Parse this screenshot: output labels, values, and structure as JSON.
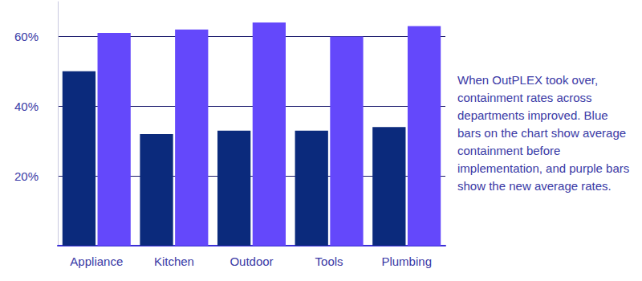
{
  "chart_data": {
    "type": "bar",
    "categories": [
      "Appliance",
      "Kitchen",
      "Outdoor",
      "Tools",
      "Plumbing"
    ],
    "series": [
      {
        "color": "#0b2a7c",
        "values": [
          50,
          32,
          33,
          33,
          34
        ]
      },
      {
        "color": "#6448fb",
        "values": [
          61,
          62,
          64,
          60,
          63
        ]
      }
    ],
    "ylim": [
      0,
      70
    ],
    "yticks": [
      {
        "value": 20,
        "label": "20%"
      },
      {
        "value": 40,
        "label": "40%"
      },
      {
        "value": 60,
        "label": "60%"
      }
    ],
    "grid": true,
    "annotation": "When OutPLEX took over, containment rates across departments improved. Blue bars on the chart show average containment before implementation, and purple bars show the new average rates."
  }
}
